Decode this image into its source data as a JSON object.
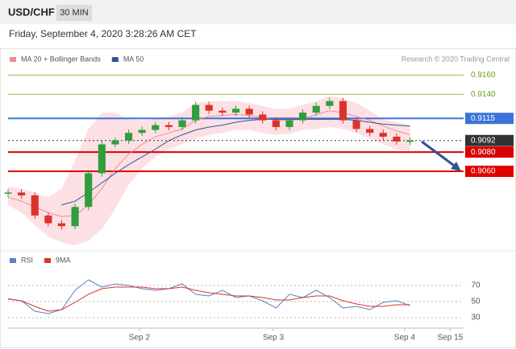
{
  "header": {
    "symbol": "USD/CHF",
    "interval": "30 MIN",
    "timestamp": "Friday, September 4, 2020 3:28:26 AM CET"
  },
  "chart_data": [
    {
      "type": "candlestick",
      "credit": "Research © 2020 Trading Central",
      "x": [
        0,
        1,
        2,
        3,
        4,
        5,
        6,
        7,
        8,
        9,
        10,
        11,
        12,
        13,
        14,
        15,
        16,
        17,
        18,
        19,
        20,
        21,
        22,
        23,
        24,
        25,
        26,
        27,
        28,
        29,
        30
      ],
      "values": [
        0.9038,
        0.9035,
        0.9014,
        0.9006,
        0.9003,
        0.9023,
        0.9058,
        0.9088,
        0.9092,
        0.91,
        0.9103,
        0.9108,
        0.9106,
        0.9113,
        0.9129,
        0.9123,
        0.9121,
        0.9125,
        0.9119,
        0.9113,
        0.9106,
        0.9113,
        0.9121,
        0.9128,
        0.9133,
        0.9113,
        0.9104,
        0.91,
        0.9096,
        0.9091,
        0.9092
      ],
      "up_color": "#2e9e3e",
      "down_color": "#d9342b",
      "series": [
        {
          "name": "MA 20 + Bollinger Bands",
          "color": "#f08a95",
          "band_color": "#fde0e3",
          "values": [
            0.9033,
            0.9029,
            0.9023,
            0.9017,
            0.9013,
            0.9014,
            0.9025,
            0.9042,
            0.9063,
            0.9078,
            0.9088,
            0.9096,
            0.91,
            0.9104,
            0.9113,
            0.9117,
            0.9118,
            0.9119,
            0.9118,
            0.9116,
            0.9113,
            0.9113,
            0.9114,
            0.9119,
            0.9123,
            0.9121,
            0.9117,
            0.9113,
            0.9107,
            0.9102,
            0.9098
          ],
          "upper": [
            0.9044,
            0.9042,
            0.9038,
            0.9033,
            0.9042,
            0.9071,
            0.9104,
            0.9121,
            0.9121,
            0.9114,
            0.9113,
            0.9114,
            0.9117,
            0.9121,
            0.9131,
            0.9133,
            0.9133,
            0.9133,
            0.9131,
            0.9128,
            0.9125,
            0.9125,
            0.9129,
            0.9133,
            0.9138,
            0.9136,
            0.9131,
            0.9123,
            0.9114,
            0.9111,
            0.9108
          ],
          "lower": [
            0.9025,
            0.9017,
            0.9004,
            0.8992,
            0.8986,
            0.8983,
            0.8988,
            0.9,
            0.9021,
            0.9046,
            0.9063,
            0.9075,
            0.9083,
            0.9088,
            0.9094,
            0.9098,
            0.91,
            0.9103,
            0.9103,
            0.91,
            0.9098,
            0.9099,
            0.9103,
            0.9104,
            0.9106,
            0.9104,
            0.91,
            0.9094,
            0.9088,
            0.9083,
            0.9081
          ]
        },
        {
          "name": "MA 50",
          "color": "#2f5597",
          "values": [
            null,
            null,
            null,
            null,
            0.9025,
            0.9029,
            0.9038,
            0.9048,
            0.9058,
            0.9067,
            0.9075,
            0.9083,
            0.9092,
            0.9098,
            0.9103,
            0.9106,
            0.9108,
            0.9111,
            0.9113,
            0.9114,
            0.9114,
            0.9114,
            0.9114,
            0.9114,
            0.9114,
            0.9114,
            0.9113,
            0.9111,
            0.9109,
            0.9108,
            0.9107
          ]
        }
      ],
      "levels": [
        {
          "value": 0.916,
          "label": "0.9160",
          "color": "#8bc34a",
          "filled": false,
          "dashed": false
        },
        {
          "value": 0.914,
          "label": "0.9140",
          "color": "#8bc34a",
          "filled": false,
          "dashed": false
        },
        {
          "value": 0.9115,
          "label": "0.9115",
          "color": "#3b73d9",
          "filled": true,
          "dashed": false
        },
        {
          "value": 0.9092,
          "label": "0.9092",
          "color": "#333333",
          "filled": true,
          "dashed": true
        },
        {
          "value": 0.908,
          "label": "0.9080",
          "color": "#d90000",
          "filled": true,
          "dashed": false
        },
        {
          "value": 0.906,
          "label": "0.9060",
          "color": "#e00000",
          "filled": true,
          "dashed": false
        }
      ],
      "xlim": [
        0,
        34
      ],
      "ylim": [
        0.8979,
        0.9167
      ]
    },
    {
      "type": "line",
      "x": [
        0,
        1,
        2,
        3,
        4,
        5,
        6,
        7,
        8,
        9,
        10,
        11,
        12,
        13,
        14,
        15,
        16,
        17,
        18,
        19,
        20,
        21,
        22,
        23,
        24,
        25,
        26,
        27,
        28,
        29,
        30
      ],
      "series": [
        {
          "name": "RSI",
          "color": "#5b7fc4",
          "values": [
            53.5,
            50.9,
            38,
            35,
            40,
            64,
            77,
            68,
            72,
            70,
            66,
            64,
            66,
            72,
            59,
            57,
            64,
            55,
            57,
            51,
            42,
            59,
            55,
            64,
            55,
            42,
            44,
            40,
            49,
            51,
            45
          ]
        },
        {
          "name": "9MA",
          "color": "#d9342b",
          "values": [
            53,
            51,
            44,
            38,
            40,
            49,
            59,
            66,
            68,
            68,
            68,
            66,
            66,
            68,
            64,
            61,
            59,
            57,
            57,
            55,
            52,
            52,
            55,
            57,
            57,
            51,
            47,
            44,
            44,
            46,
            46
          ]
        }
      ],
      "xlim": [
        0,
        34
      ],
      "ylim": [
        20,
        90
      ],
      "yticks": [
        30,
        50,
        70
      ],
      "xticks": [
        {
          "value": 9.8,
          "label": "Sep 2"
        },
        {
          "value": 19.8,
          "label": "Sep 3"
        },
        {
          "value": 29.6,
          "label": "Sep 4"
        },
        {
          "value": 33,
          "label": "Sep 15"
        }
      ]
    }
  ]
}
